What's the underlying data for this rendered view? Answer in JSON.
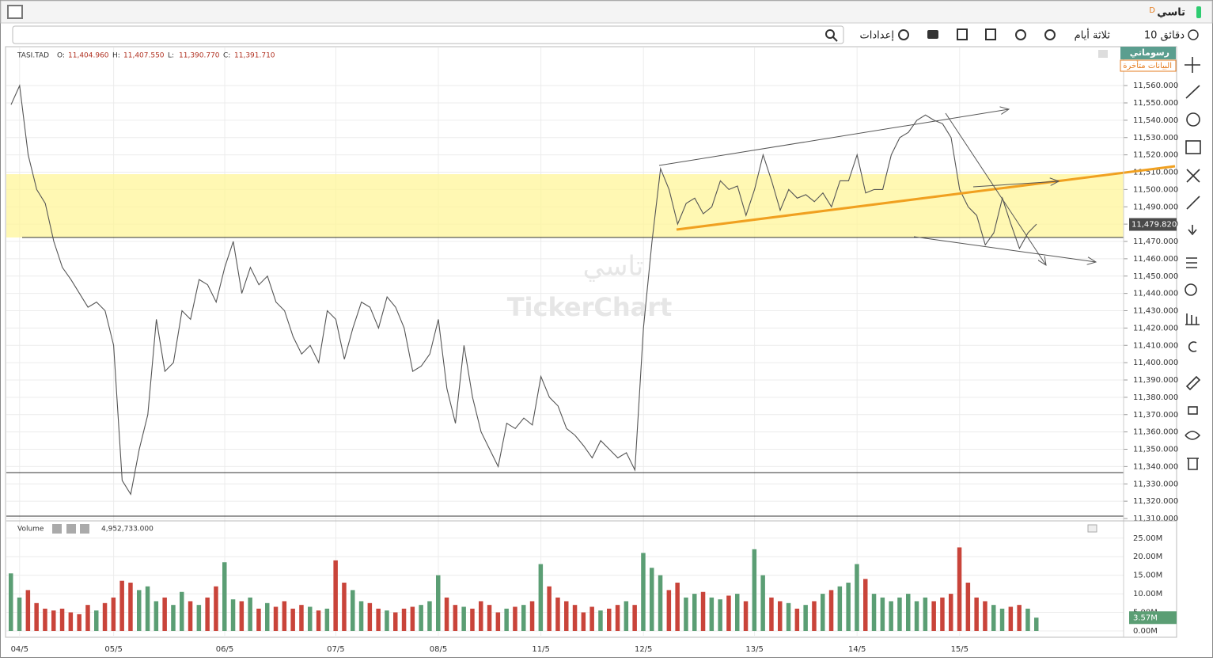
{
  "header": {
    "symbol": "تاسي",
    "period": "D"
  },
  "toolbar": {
    "interval": "10 دقائق",
    "range": "ثلاثة أيام",
    "settings": "إعدادات"
  },
  "side": {
    "drawings": "رسوماتي",
    "delayed": "البيانات متأخرة"
  },
  "watermark": {
    "name": "تاسي",
    "brand": "TickerChart"
  },
  "chart_data": [
    {
      "type": "line",
      "symbol": "TASI.TAD",
      "ohlc": [
        {
          "label": "O:",
          "value": "11,404.960"
        },
        {
          "label": "H:",
          "value": "11,407.550"
        },
        {
          "label": "L:",
          "value": "11,390.770"
        },
        {
          "label": "C:",
          "value": "11,391.710"
        }
      ],
      "color": "#555555",
      "ylim": [
        11310,
        11582
      ],
      "yticks": [
        {
          "value": 11310,
          "label": "11,310.000"
        },
        {
          "value": 11320,
          "label": "11,320.000"
        },
        {
          "value": 11330,
          "label": "11,330.000"
        },
        {
          "value": 11340,
          "label": "11,340.000"
        },
        {
          "value": 11350,
          "label": "11,350.000"
        },
        {
          "value": 11360,
          "label": "11,360.000"
        },
        {
          "value": 11370,
          "label": "11,370.000"
        },
        {
          "value": 11380,
          "label": "11,380.000"
        },
        {
          "value": 11390,
          "label": "11,390.000"
        },
        {
          "value": 11400,
          "label": "11,400.000"
        },
        {
          "value": 11410,
          "label": "11,410.000"
        },
        {
          "value": 11420,
          "label": "11,420.000"
        },
        {
          "value": 11430,
          "label": "11,430.000"
        },
        {
          "value": 11440,
          "label": "11,440.000"
        },
        {
          "value": 11450,
          "label": "11,450.000"
        },
        {
          "value": 11460,
          "label": "11,460.000"
        },
        {
          "value": 11470,
          "label": "11,470.000"
        },
        {
          "value": 11480,
          "label": "11,480.000"
        },
        {
          "value": 11490,
          "label": "11,490.000"
        },
        {
          "value": 11500,
          "label": "11,500.000"
        },
        {
          "value": 11510,
          "label": "11,510.000"
        },
        {
          "value": 11520,
          "label": "11,520.000"
        },
        {
          "value": 11530,
          "label": "11,530.000"
        },
        {
          "value": 11540,
          "label": "11,540.000"
        },
        {
          "value": 11550,
          "label": "11,550.000"
        },
        {
          "value": 11560,
          "label": "11,560.000"
        }
      ],
      "last": {
        "value": 11479.82,
        "label": "11,479.820"
      },
      "values": [
        11549,
        11560,
        11520,
        11500,
        11492,
        11470,
        11455,
        11448,
        11440,
        11432,
        11435,
        11430,
        11410,
        11332,
        11324,
        11350,
        11370,
        11425,
        11395,
        11400,
        11430,
        11425,
        11448,
        11445,
        11435,
        11455,
        11470,
        11440,
        11455,
        11445,
        11450,
        11435,
        11430,
        11415,
        11405,
        11410,
        11400,
        11430,
        11425,
        11402,
        11420,
        11435,
        11432,
        11420,
        11438,
        11432,
        11420,
        11395,
        11398,
        11405,
        11425,
        11385,
        11365,
        11410,
        11380,
        11360,
        11350,
        11340,
        11365,
        11362,
        11368,
        11364,
        11392,
        11380,
        11375,
        11362,
        11358,
        11352,
        11345,
        11355,
        11350,
        11345,
        11348,
        11338,
        11420,
        11470,
        11512,
        11500,
        11480,
        11492,
        11495,
        11486,
        11490,
        11505,
        11500,
        11502,
        11485,
        11500,
        11520,
        11505,
        11488,
        11500,
        11495,
        11497,
        11493,
        11498,
        11490,
        11505,
        11505,
        11520,
        11498,
        11500,
        11500,
        11520,
        11530,
        11533,
        11540,
        11543,
        11540,
        11538,
        11530,
        11500,
        11490,
        11485,
        11468,
        11475,
        11495,
        11480,
        11466,
        11475,
        11480
      ]
    },
    {
      "type": "bar",
      "title": "Volume",
      "current_text": "4,952,733.000",
      "up_color": "#5b9e74",
      "down_color": "#c9443a",
      "ylim": [
        0,
        29
      ],
      "yticks": [
        {
          "value": 0,
          "label": "0.00M"
        },
        {
          "value": 5,
          "label": "5.00M"
        },
        {
          "value": 10,
          "label": "10.00M"
        },
        {
          "value": 15,
          "label": "15.00M"
        },
        {
          "value": 20,
          "label": "20.00M"
        },
        {
          "value": 25,
          "label": "25.00M"
        }
      ],
      "last": {
        "value": 3.57,
        "label": "3.57M"
      },
      "categories": [
        null,
        "04/5",
        null,
        null,
        null,
        null,
        null,
        null,
        null,
        null,
        null,
        null,
        "05/5",
        null,
        null,
        null,
        null,
        null,
        null,
        null,
        null,
        null,
        null,
        null,
        null,
        "06/5",
        null,
        null,
        null,
        null,
        null,
        null,
        null,
        null,
        null,
        null,
        null,
        null,
        "07/5",
        null,
        null,
        null,
        null,
        null,
        null,
        null,
        null,
        null,
        null,
        null,
        "08/5",
        null,
        null,
        null,
        null,
        null,
        null,
        null,
        null,
        null,
        null,
        null,
        "11/5",
        null,
        null,
        null,
        null,
        null,
        null,
        null,
        null,
        null,
        null,
        null,
        "12/5",
        null,
        null,
        null,
        null,
        null,
        null,
        null,
        null,
        null,
        null,
        null,
        null,
        "13/5",
        null,
        null,
        null,
        null,
        null,
        null,
        null,
        null,
        null,
        null,
        null,
        "14/5",
        null,
        null,
        null,
        null,
        null,
        null,
        null,
        null,
        null,
        null,
        null,
        "15/5",
        null,
        null,
        null,
        null,
        null,
        null,
        null,
        null,
        null
      ],
      "values": [
        15.5,
        9,
        11,
        7.5,
        6,
        5.5,
        6,
        5,
        4.5,
        7,
        5.5,
        7.5,
        9,
        13.5,
        13,
        11,
        12,
        8,
        9,
        7,
        10.5,
        8,
        7,
        9,
        12,
        18.5,
        8.5,
        8,
        9,
        6,
        7.5,
        6.5,
        8,
        6,
        7,
        6.5,
        5.5,
        6,
        19,
        13,
        11,
        8,
        7.5,
        6,
        5.5,
        5,
        6,
        6.5,
        7,
        8,
        15,
        9,
        7,
        6.5,
        6,
        8,
        7,
        5,
        6,
        6.5,
        7,
        8,
        18,
        12,
        9,
        8,
        7,
        5,
        6.5,
        5.5,
        6,
        7,
        8,
        7,
        21,
        17,
        15,
        11,
        13,
        9,
        10,
        10.5,
        9,
        8.5,
        9.5,
        10,
        8,
        22,
        15,
        9,
        8,
        7.5,
        6,
        7,
        8,
        10,
        11,
        12,
        13,
        18,
        14,
        10,
        9,
        8,
        9,
        10,
        8,
        9,
        8,
        9,
        10,
        22.5,
        13,
        9,
        8,
        7,
        6,
        6.5,
        7,
        6,
        3.57
      ]
    }
  ]
}
